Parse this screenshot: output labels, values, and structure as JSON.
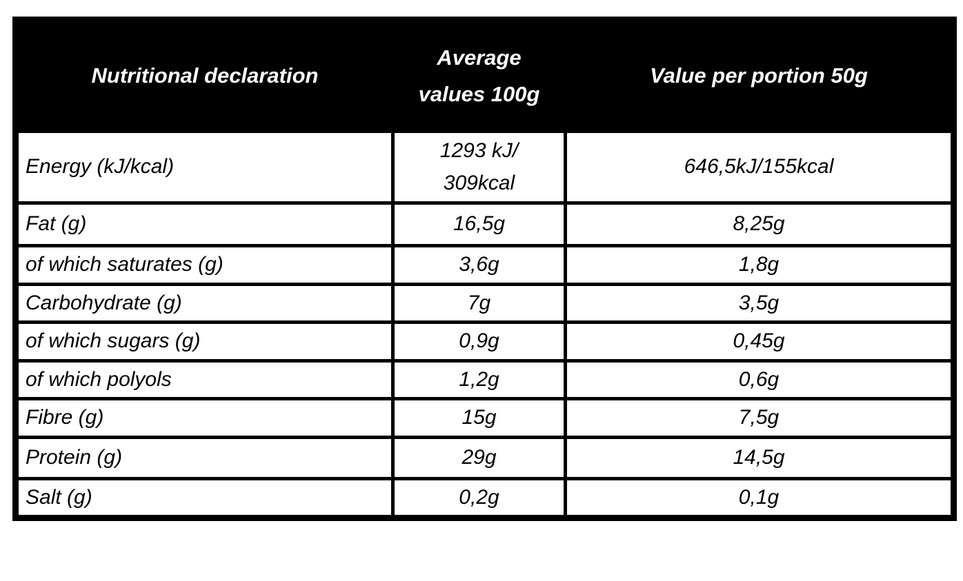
{
  "table": {
    "title": "Nutritional declaration table",
    "colors": {
      "header_background": "#000000",
      "header_text": "#ffffff",
      "body_background": "#ffffff",
      "body_text": "#000000",
      "border": "#000000"
    },
    "header": {
      "col1": "Nutritional declaration",
      "col2": "Average values 100g",
      "col3": "Value per portion 50g"
    },
    "rows": [
      {
        "label": "Energy (kJ/kcal)",
        "per_100g": "1293 kJ/\n309kcal",
        "per_portion": "646,5kJ/155kcal"
      },
      {
        "label": "Fat (g)",
        "per_100g": "16,5g",
        "per_portion": "8,25g"
      },
      {
        "label": "of which saturates (g)",
        "per_100g": "3,6g",
        "per_portion": "1,8g"
      },
      {
        "label": "Carbohydrate (g)",
        "per_100g": "7g",
        "per_portion": "3,5g"
      },
      {
        "label": "of which sugars (g)",
        "per_100g": "0,9g",
        "per_portion": "0,45g"
      },
      {
        "label": "of which polyols",
        "per_100g": "1,2g",
        "per_portion": "0,6g"
      },
      {
        "label": "Fibre (g)",
        "per_100g": "15g",
        "per_portion": "7,5g"
      },
      {
        "label": "Protein (g)",
        "per_100g": "29g",
        "per_portion": "14,5g"
      },
      {
        "label": "Salt (g)",
        "per_100g": "0,2g",
        "per_portion": "0,1g"
      }
    ]
  }
}
